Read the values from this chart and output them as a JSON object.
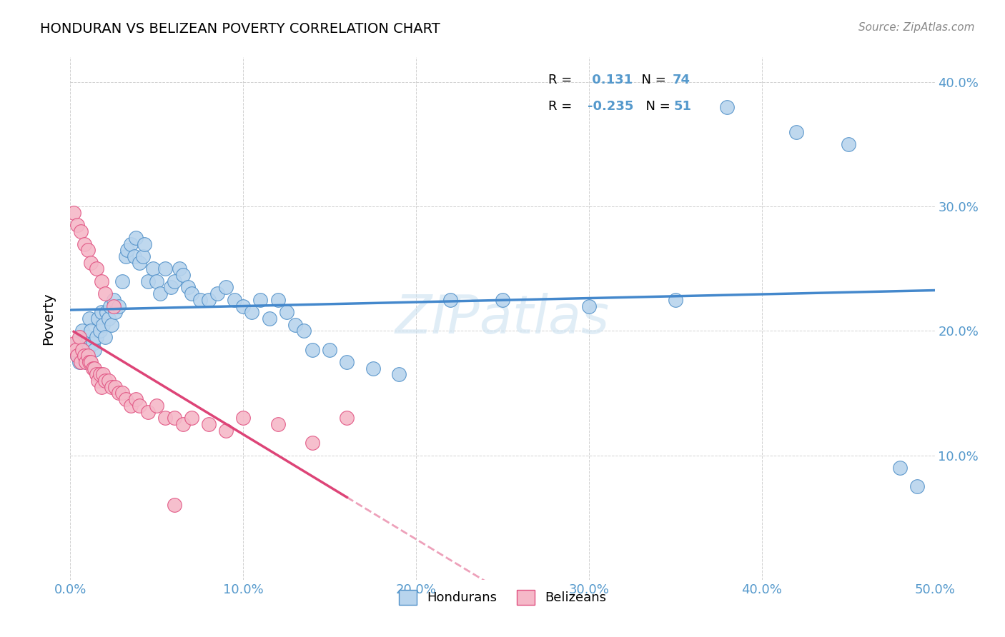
{
  "title": "HONDURAN VS BELIZEAN POVERTY CORRELATION CHART",
  "source": "Source: ZipAtlas.com",
  "ylabel": "Poverty",
  "xlim": [
    0.0,
    0.5
  ],
  "ylim": [
    0.0,
    0.42
  ],
  "xticks": [
    0.0,
    0.1,
    0.2,
    0.3,
    0.4,
    0.5
  ],
  "yticks": [
    0.0,
    0.1,
    0.2,
    0.3,
    0.4
  ],
  "blue_fill": "#b8d4ed",
  "blue_edge": "#5090c8",
  "pink_fill": "#f5b8c8",
  "pink_edge": "#e05080",
  "line_blue": "#4488cc",
  "line_pink": "#dd4477",
  "tick_color": "#5599cc",
  "r_blue": "0.131",
  "n_blue": "74",
  "r_pink": "-0.235",
  "n_pink": "51",
  "watermark": "ZIPatlas",
  "legend_label_blue": "Hondurans",
  "legend_label_pink": "Belizeans",
  "hondurans_x": [
    0.002,
    0.003,
    0.004,
    0.005,
    0.006,
    0.007,
    0.008,
    0.009,
    0.01,
    0.01,
    0.011,
    0.012,
    0.013,
    0.014,
    0.015,
    0.016,
    0.017,
    0.018,
    0.019,
    0.02,
    0.021,
    0.022,
    0.023,
    0.024,
    0.025,
    0.026,
    0.028,
    0.03,
    0.032,
    0.033,
    0.035,
    0.037,
    0.038,
    0.04,
    0.042,
    0.043,
    0.045,
    0.048,
    0.05,
    0.052,
    0.055,
    0.058,
    0.06,
    0.063,
    0.065,
    0.068,
    0.07,
    0.075,
    0.08,
    0.085,
    0.09,
    0.095,
    0.1,
    0.105,
    0.11,
    0.115,
    0.12,
    0.125,
    0.13,
    0.135,
    0.14,
    0.15,
    0.16,
    0.175,
    0.19,
    0.22,
    0.25,
    0.3,
    0.35,
    0.38,
    0.42,
    0.45,
    0.48,
    0.49
  ],
  "hondurans_y": [
    0.185,
    0.19,
    0.18,
    0.175,
    0.195,
    0.2,
    0.185,
    0.175,
    0.195,
    0.185,
    0.21,
    0.2,
    0.19,
    0.185,
    0.195,
    0.21,
    0.2,
    0.215,
    0.205,
    0.195,
    0.215,
    0.21,
    0.22,
    0.205,
    0.225,
    0.215,
    0.22,
    0.24,
    0.26,
    0.265,
    0.27,
    0.26,
    0.275,
    0.255,
    0.26,
    0.27,
    0.24,
    0.25,
    0.24,
    0.23,
    0.25,
    0.235,
    0.24,
    0.25,
    0.245,
    0.235,
    0.23,
    0.225,
    0.225,
    0.23,
    0.235,
    0.225,
    0.22,
    0.215,
    0.225,
    0.21,
    0.225,
    0.215,
    0.205,
    0.2,
    0.185,
    0.185,
    0.175,
    0.17,
    0.165,
    0.225,
    0.225,
    0.22,
    0.225,
    0.38,
    0.36,
    0.35,
    0.09,
    0.075
  ],
  "belizeans_x": [
    0.002,
    0.003,
    0.004,
    0.005,
    0.006,
    0.007,
    0.008,
    0.009,
    0.01,
    0.011,
    0.012,
    0.013,
    0.014,
    0.015,
    0.016,
    0.017,
    0.018,
    0.019,
    0.02,
    0.022,
    0.024,
    0.026,
    0.028,
    0.03,
    0.032,
    0.035,
    0.038,
    0.04,
    0.045,
    0.05,
    0.055,
    0.06,
    0.065,
    0.07,
    0.08,
    0.09,
    0.1,
    0.12,
    0.14,
    0.16,
    0.002,
    0.004,
    0.006,
    0.008,
    0.01,
    0.012,
    0.015,
    0.018,
    0.02,
    0.025,
    0.06
  ],
  "belizeans_y": [
    0.19,
    0.185,
    0.18,
    0.195,
    0.175,
    0.185,
    0.18,
    0.175,
    0.18,
    0.175,
    0.175,
    0.17,
    0.17,
    0.165,
    0.16,
    0.165,
    0.155,
    0.165,
    0.16,
    0.16,
    0.155,
    0.155,
    0.15,
    0.15,
    0.145,
    0.14,
    0.145,
    0.14,
    0.135,
    0.14,
    0.13,
    0.13,
    0.125,
    0.13,
    0.125,
    0.12,
    0.13,
    0.125,
    0.11,
    0.13,
    0.295,
    0.285,
    0.28,
    0.27,
    0.265,
    0.255,
    0.25,
    0.24,
    0.23,
    0.22,
    0.06
  ]
}
